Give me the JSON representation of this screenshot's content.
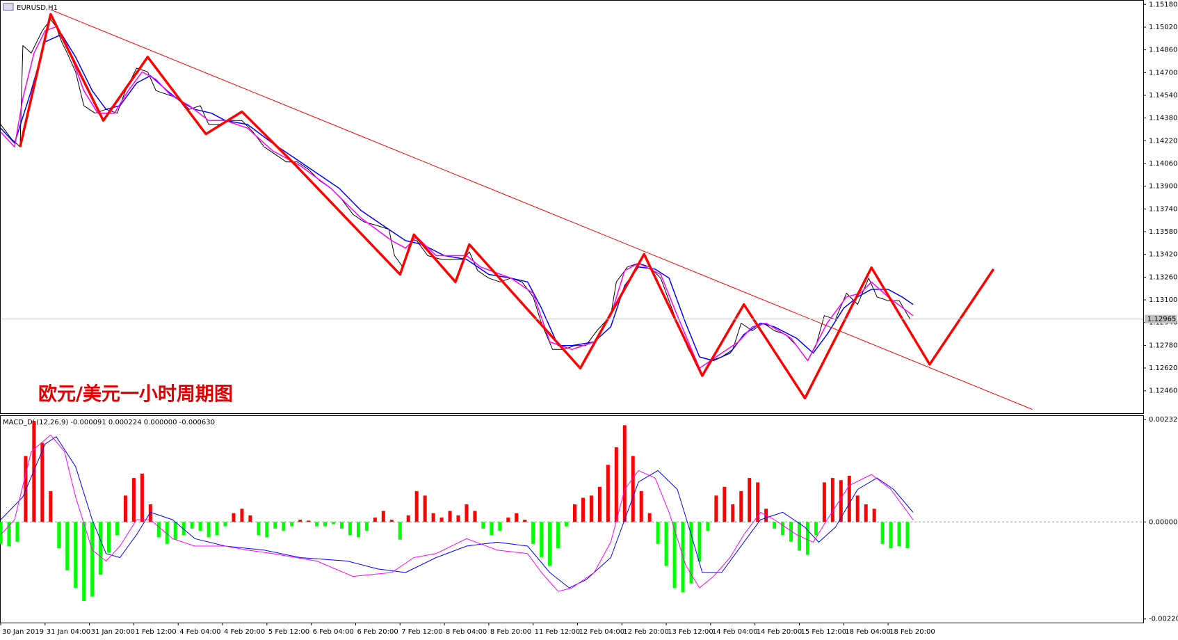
{
  "chart_data": [
    {
      "type": "line",
      "title": "EURUSD,H1",
      "annotation": "欧元/美元一小时周期图",
      "xlim": [
        0,
        412
      ],
      "ylim": [
        1.12302,
        1.15206
      ],
      "yticks": [
        {
          "value": 1.1246,
          "label": "1.12460"
        },
        {
          "value": 1.1262,
          "label": "1.12620"
        },
        {
          "value": 1.1278,
          "label": "1.12780"
        },
        {
          "value": 1.1294,
          "label": "1.12940"
        },
        {
          "value": 1.131,
          "label": "1.13100"
        },
        {
          "value": 1.1326,
          "label": "1.13260"
        },
        {
          "value": 1.1342,
          "label": "1.13420"
        },
        {
          "value": 1.1358,
          "label": "1.13580"
        },
        {
          "value": 1.1374,
          "label": "1.13740"
        },
        {
          "value": 1.139,
          "label": "1.13900"
        },
        {
          "value": 1.1406,
          "label": "1.14060"
        },
        {
          "value": 1.1422,
          "label": "1.14220"
        },
        {
          "value": 1.1438,
          "label": "1.14380"
        },
        {
          "value": 1.1454,
          "label": "1.14540"
        },
        {
          "value": 1.147,
          "label": "1.14700"
        },
        {
          "value": 1.1486,
          "label": "1.14860"
        },
        {
          "value": 1.1502,
          "label": "1.15020"
        },
        {
          "value": 1.1518,
          "label": "1.15180"
        }
      ],
      "current_price": 1.12965,
      "current_color": "#c0c0c0",
      "series": [
        {
          "color": "#000000",
          "width": 1,
          "x": [
            0,
            4,
            7,
            8,
            11,
            15,
            18,
            20,
            22,
            24,
            27,
            30,
            34,
            38,
            42,
            45,
            49,
            53,
            56,
            60,
            64,
            68,
            72,
            75,
            79,
            83,
            87,
            91,
            95,
            99,
            103,
            107,
            111,
            115,
            119,
            123,
            127,
            131,
            136,
            140,
            142,
            145,
            148,
            150,
            154,
            159,
            163,
            167,
            169,
            172,
            176,
            180,
            184,
            188,
            192,
            195,
            199,
            203,
            207,
            211,
            215,
            220,
            222,
            226,
            230,
            234,
            238,
            241,
            244,
            248,
            252,
            256,
            260,
            264,
            267,
            271,
            275,
            279,
            283,
            287,
            291,
            294,
            297,
            301,
            305,
            309,
            313,
            316,
            320,
            324,
            328
          ],
          "values": [
            1.14335,
            1.1423,
            1.14177,
            1.1489,
            1.14837,
            1.14995,
            1.15074,
            1.15022,
            1.14916,
            1.14837,
            1.14705,
            1.14467,
            1.14414,
            1.14441,
            1.14414,
            1.14573,
            1.14731,
            1.14705,
            1.14573,
            1.14546,
            1.1452,
            1.14441,
            1.14467,
            1.14335,
            1.14335,
            1.14362,
            1.14362,
            1.14282,
            1.14177,
            1.14124,
            1.14071,
            1.14071,
            1.14018,
            1.13939,
            1.13886,
            1.13807,
            1.13702,
            1.13649,
            1.13622,
            1.13596,
            1.13411,
            1.13332,
            1.13517,
            1.13517,
            1.13411,
            1.13385,
            1.13385,
            1.13385,
            1.13438,
            1.13306,
            1.13253,
            1.13226,
            1.13253,
            1.13226,
            1.13121,
            1.12936,
            1.12751,
            1.12751,
            1.12778,
            1.12778,
            1.12883,
            1.12989,
            1.13226,
            1.13332,
            1.13358,
            1.13332,
            1.13253,
            1.13094,
            1.12936,
            1.12751,
            1.12619,
            1.12672,
            1.12698,
            1.12751,
            1.12936,
            1.12883,
            1.12936,
            1.12883,
            1.12857,
            1.12778,
            1.12672,
            1.12778,
            1.12989,
            1.12962,
            1.13147,
            1.13068,
            1.13253,
            1.13121,
            1.13094,
            1.13094,
            1.12962
          ]
        },
        {
          "color": "#0000ff",
          "width": 1.5,
          "x": [
            0,
            5,
            11,
            16,
            22,
            27,
            33,
            38,
            43,
            49,
            54,
            60,
            65,
            70,
            76,
            81,
            89,
            98,
            106,
            114,
            122,
            130,
            138,
            146,
            152,
            160,
            168,
            176,
            184,
            190,
            195,
            201,
            206,
            214,
            220,
            225,
            230,
            236,
            241,
            247,
            252,
            257,
            263,
            268,
            274,
            279,
            287,
            293,
            298,
            304,
            309,
            314,
            320,
            325,
            329
          ],
          "values": [
            1.14309,
            1.14203,
            1.14573,
            1.14916,
            1.14969,
            1.1481,
            1.14573,
            1.14441,
            1.14467,
            1.14626,
            1.14678,
            1.14573,
            1.14494,
            1.14441,
            1.14414,
            1.14362,
            1.14335,
            1.14203,
            1.14098,
            1.13992,
            1.13886,
            1.13728,
            1.13622,
            1.13517,
            1.1349,
            1.13411,
            1.13385,
            1.13279,
            1.13253,
            1.13226,
            1.13042,
            1.12778,
            1.12778,
            1.12804,
            1.1291,
            1.132,
            1.13332,
            1.13316,
            1.13253,
            1.12936,
            1.12698,
            1.12672,
            1.12725,
            1.12857,
            1.12936,
            1.1291,
            1.1283,
            1.12725,
            1.12857,
            1.13042,
            1.13121,
            1.13174,
            1.13174,
            1.13121,
            1.13068
          ]
        },
        {
          "color": "#ff00ff",
          "width": 1.5,
          "x": [
            0,
            5,
            8,
            12,
            16,
            20,
            24,
            30,
            35,
            41,
            46,
            51,
            56,
            61,
            68,
            75,
            81,
            89,
            98,
            108,
            119,
            130,
            141,
            146,
            150,
            157,
            168,
            173,
            184,
            192,
            198,
            206,
            214,
            220,
            225,
            230,
            238,
            244,
            252,
            260,
            266,
            271,
            276,
            285,
            291,
            298,
            305,
            310,
            314,
            320,
            329
          ],
          "values": [
            1.14282,
            1.14177,
            1.1452,
            1.14837,
            1.14995,
            1.15022,
            1.1489,
            1.14573,
            1.14414,
            1.14414,
            1.14573,
            1.14705,
            1.14652,
            1.14546,
            1.14467,
            1.14362,
            1.14362,
            1.14309,
            1.1415,
            1.14045,
            1.13886,
            1.13675,
            1.13517,
            1.13464,
            1.13543,
            1.13411,
            1.13411,
            1.13332,
            1.13253,
            1.13147,
            1.12804,
            1.12751,
            1.12804,
            1.12989,
            1.13306,
            1.13358,
            1.13279,
            1.12989,
            1.12619,
            1.12725,
            1.12804,
            1.1291,
            1.12936,
            1.1283,
            1.12672,
            1.12936,
            1.13121,
            1.13147,
            1.13226,
            1.13121,
            1.12989
          ]
        },
        {
          "color": "#ff0000",
          "width": 3.5,
          "x": [
            7,
            18,
            37,
            53,
            74,
            87,
            106,
            144,
            149,
            164,
            169,
            209,
            232,
            253,
            268,
            290,
            314,
            335,
            358
          ],
          "values": [
            1.14177,
            1.15111,
            1.14362,
            1.1481,
            1.14267,
            1.14425,
            1.14055,
            1.13279,
            1.13559,
            1.13226,
            1.1349,
            1.12619,
            1.13422,
            1.12566,
            1.13068,
            1.12408,
            1.13327,
            1.12646,
            1.13316
          ]
        },
        {
          "color": "#ff0000",
          "width": 1,
          "x": [
            18,
            372
          ],
          "values": [
            1.15143,
            1.12329
          ]
        }
      ]
    },
    {
      "type": "bar",
      "title": "MACD_DL(12,26,9) -0.000091 0.000224 0.000000 -0.000630",
      "xlim": [
        0,
        412
      ],
      "ylim": [
        -0.00229,
        0.00241
      ],
      "yticks": [
        {
          "value": -0.002206,
          "label": "-0.002206"
        },
        {
          "value": 0,
          "label": "0.000000"
        },
        {
          "value": 0.002327,
          "label": "0.002327"
        }
      ],
      "xticks": [
        {
          "value": 0,
          "label": "30 Jan 2019"
        },
        {
          "value": 16,
          "label": "31 Jan 04:00"
        },
        {
          "value": 32,
          "label": "31 Jan 20:00"
        },
        {
          "value": 48,
          "label": "1 Feb 12:00"
        },
        {
          "value": 64,
          "label": "4 Feb 04:00"
        },
        {
          "value": 80,
          "label": "4 Feb 20:00"
        },
        {
          "value": 96,
          "label": "5 Feb 12:00"
        },
        {
          "value": 112,
          "label": "6 Feb 04:00"
        },
        {
          "value": 128,
          "label": "6 Feb 20:00"
        },
        {
          "value": 144,
          "label": "7 Feb 12:00"
        },
        {
          "value": 160,
          "label": "8 Feb 04:00"
        },
        {
          "value": 176,
          "label": "8 Feb 20:00"
        },
        {
          "value": 192,
          "label": "11 Feb 12:00"
        },
        {
          "value": 208,
          "label": "12 Feb 04:00"
        },
        {
          "value": 224,
          "label": "12 Feb 20:00"
        },
        {
          "value": 240,
          "label": "13 Feb 12:00"
        },
        {
          "value": 256,
          "label": "14 Feb 04:00"
        },
        {
          "value": 272,
          "label": "14 Feb 20:00"
        },
        {
          "value": 288,
          "label": "15 Feb 12:00"
        },
        {
          "value": 304,
          "label": "18 Feb 04:00"
        },
        {
          "value": 320,
          "label": "18 Feb 20:00"
        }
      ],
      "up_color": "#ff0000",
      "down_color": "#00ff00",
      "x": [
        0,
        3,
        6,
        9,
        12,
        15,
        18,
        21,
        24,
        27,
        30,
        33,
        36,
        39,
        42,
        45,
        48,
        51,
        54,
        57,
        60,
        63,
        66,
        69,
        72,
        75,
        78,
        81,
        84,
        87,
        90,
        93,
        96,
        99,
        102,
        105,
        108,
        111,
        114,
        117,
        120,
        123,
        126,
        129,
        132,
        135,
        138,
        141,
        144,
        147,
        150,
        153,
        156,
        159,
        162,
        165,
        168,
        171,
        174,
        177,
        180,
        183,
        186,
        189,
        192,
        195,
        198,
        201,
        204,
        207,
        210,
        213,
        216,
        219,
        222,
        225,
        228,
        231,
        234,
        237,
        240,
        243,
        246,
        249,
        252,
        255,
        258,
        261,
        264,
        267,
        270,
        273,
        276,
        279,
        282,
        285,
        288,
        291,
        294,
        297,
        300,
        303,
        306,
        309,
        312,
        315,
        318,
        321,
        324,
        327
      ],
      "values": [
        -0.0005,
        -0.00055,
        -0.00045,
        0.0015,
        0.0023,
        0.0018,
        0.0007,
        -0.0006,
        -0.0011,
        -0.0015,
        -0.0018,
        -0.0017,
        -0.0012,
        -0.0007,
        -0.0003,
        0.0006,
        0.001,
        0.0011,
        0.0004,
        -0.00035,
        -0.0005,
        -0.0004,
        -0.0003,
        -0.00015,
        -0.0002,
        -0.00035,
        -0.0003,
        -0.0001,
        0.0002,
        0.0003,
        0.00015,
        -0.0003,
        -0.00035,
        -0.00015,
        -0.0002,
        -0.0001,
        5e-05,
        3e-05,
        -0.0001,
        -0.0001,
        -5e-05,
        -0.00015,
        -0.0003,
        -0.00035,
        -0.0002,
        0.0001,
        0.00025,
        5e-05,
        -0.0004,
        0.00015,
        0.0007,
        0.0006,
        0.0002,
        0.0001,
        0.00025,
        0.00015,
        0.0004,
        0.00025,
        -0.00015,
        -0.0003,
        -0.0002,
        0.0001,
        0.0002,
        5e-05,
        -0.0005,
        -0.0008,
        -0.001,
        -0.0006,
        -0.0001,
        0.0004,
        0.00055,
        0.0006,
        0.0008,
        0.0013,
        0.0017,
        0.0022,
        0.0015,
        0.0007,
        0.0002,
        -0.0005,
        -0.001,
        -0.0015,
        -0.0016,
        -0.0014,
        -0.0009,
        -0.0002,
        0.0006,
        0.0008,
        0.0004,
        0.0007,
        0.001,
        0.0009,
        0.0003,
        -0.00015,
        -0.0003,
        -0.00045,
        -0.00065,
        -0.00075,
        -0.0003,
        0.0009,
        0.001,
        0.00095,
        0.00105,
        0.0006,
        0.0004,
        0.0003,
        -0.0005,
        -0.0006,
        -0.00055,
        -0.0006
      ],
      "series": [
        {
          "color": "#0000ff",
          "width": 1,
          "x": [
            0,
            8,
            16,
            20,
            27,
            33,
            38,
            43,
            49,
            54,
            62,
            70,
            81,
            95,
            108,
            125,
            136,
            146,
            157,
            168,
            179,
            190,
            198,
            205,
            211,
            220,
            225,
            230,
            237,
            244,
            249,
            253,
            260,
            268,
            274,
            282,
            290,
            295,
            301,
            309,
            316,
            322,
            329
          ],
          "values": [
            5e-05,
            0.00057,
            0.00177,
            0.00194,
            0.00126,
            5e-05,
            -0.00072,
            -0.00081,
            -0.00029,
            0.00022,
            5e-05,
            -0.00038,
            -0.00055,
            -0.00064,
            -0.00081,
            -0.00089,
            -0.00107,
            -0.00115,
            -0.00081,
            -0.00055,
            -0.00046,
            -0.00055,
            -0.00115,
            -0.0015,
            -0.00132,
            -0.00081,
            5e-05,
            0.00091,
            0.00117,
            0.00074,
            -0.00029,
            -0.00115,
            -0.00115,
            -0.00046,
            5e-05,
            0.00022,
            -0.00012,
            -0.00046,
            -0.00012,
            0.00074,
            0.001,
            0.00074,
            0.00022
          ]
        },
        {
          "color": "#ff00ff",
          "width": 1,
          "x": [
            0,
            5,
            11,
            18,
            23,
            27,
            33,
            38,
            43,
            49,
            54,
            62,
            70,
            81,
            89,
            98,
            114,
            127,
            141,
            149,
            157,
            168,
            179,
            190,
            195,
            201,
            206,
            214,
            220,
            225,
            230,
            236,
            241,
            247,
            252,
            257,
            263,
            268,
            274,
            279,
            287,
            293,
            298,
            306,
            314,
            321,
            329
          ],
          "values": [
            -0.00029,
            5e-05,
            0.0016,
            0.00198,
            0.0016,
            0.00057,
            -0.00064,
            -0.00089,
            -0.00055,
            5e-05,
            5e-05,
            -0.00038,
            -0.00055,
            -0.00055,
            -0.00064,
            -0.00072,
            -0.00089,
            -0.00124,
            -0.00115,
            -0.00081,
            -0.00072,
            -0.00038,
            -0.00064,
            -0.00072,
            -0.00115,
            -0.00158,
            -0.0015,
            -0.00115,
            -0.00046,
            0.00074,
            0.00117,
            0.001,
            0.00022,
            -0.00098,
            -0.0015,
            -0.00124,
            -0.00081,
            -0.00029,
            0.00022,
            5e-05,
            -0.00029,
            -0.00046,
            5e-05,
            0.00083,
            0.00108,
            0.00074,
            5e-05
          ]
        }
      ]
    }
  ]
}
